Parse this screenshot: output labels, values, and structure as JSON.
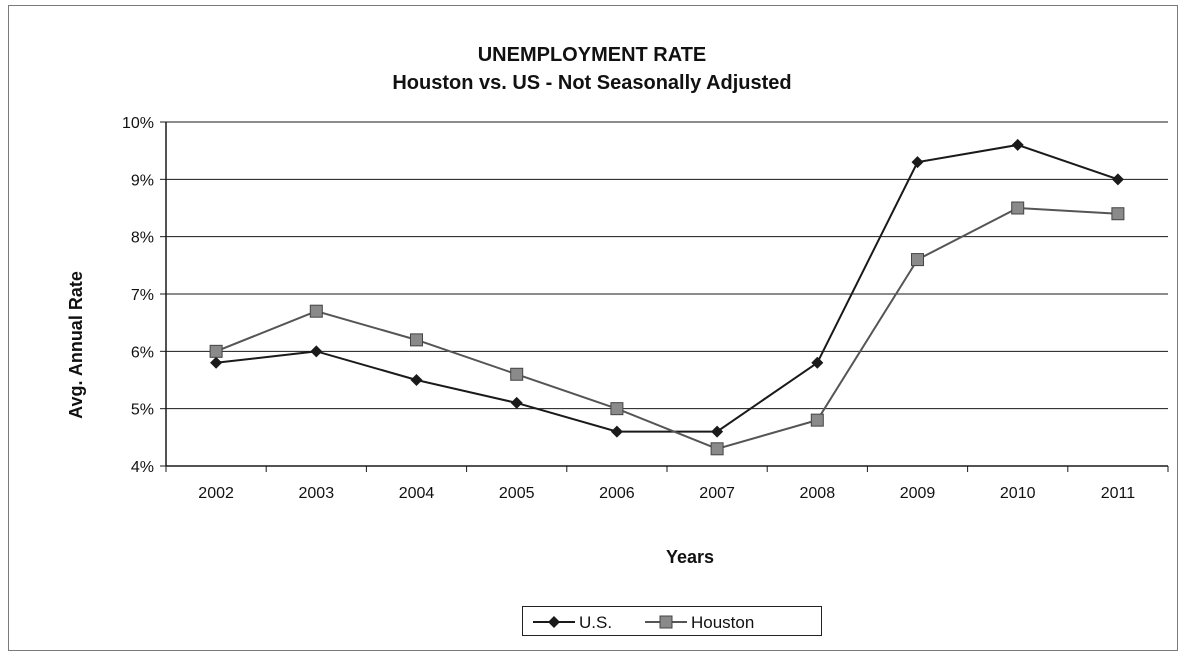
{
  "chart_data": {
    "type": "line",
    "title": "UNEMPLOYMENT RATE",
    "subtitle": "Houston vs. US - Not Seasonally Adjusted",
    "xlabel": "Years",
    "ylabel": "Avg. Annual Rate",
    "categories": [
      "2002",
      "2003",
      "2004",
      "2005",
      "2006",
      "2007",
      "2008",
      "2009",
      "2010",
      "2011"
    ],
    "y_ticks": [
      "4%",
      "5%",
      "6%",
      "7%",
      "8%",
      "9%",
      "10%"
    ],
    "ylim": [
      4,
      10
    ],
    "grid": "horizontal",
    "legend_position": "bottom",
    "series": [
      {
        "name": "U.S.",
        "marker": "diamond",
        "color": "#1a1a1a",
        "values": [
          5.8,
          6.0,
          5.5,
          5.1,
          4.6,
          4.6,
          5.8,
          9.3,
          9.6,
          9.0
        ]
      },
      {
        "name": "Houston",
        "marker": "square",
        "color": "#555555",
        "values": [
          6.0,
          6.7,
          6.2,
          5.6,
          5.0,
          4.3,
          4.8,
          7.6,
          8.5,
          8.4
        ]
      }
    ]
  }
}
